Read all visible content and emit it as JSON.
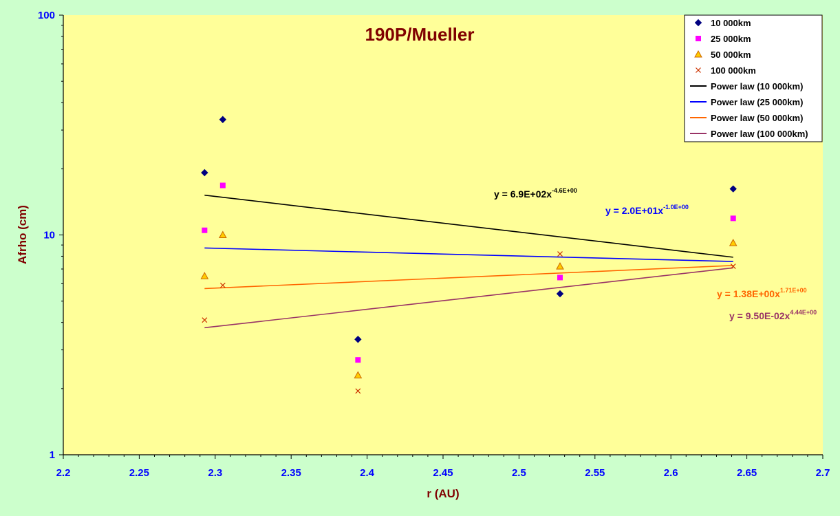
{
  "chart_data": {
    "type": "scatter",
    "title": "190P/Mueller",
    "xlabel": "r (AU)",
    "ylabel": "Afrho (cm)",
    "xlim": [
      2.2,
      2.7
    ],
    "ylim": [
      1,
      100
    ],
    "yscale": "log",
    "x_ticks": [
      "2.2",
      "2.25",
      "2.3",
      "2.35",
      "2.4",
      "2.45",
      "2.5",
      "2.55",
      "2.6",
      "2.65",
      "2.7"
    ],
    "y_ticks": [
      "1",
      "10",
      "100"
    ],
    "grid": false,
    "legend_position": "top-right",
    "series": [
      {
        "name": "10 000km",
        "marker": "diamond",
        "color": "#000080",
        "x": [
          2.293,
          2.305,
          2.394,
          2.527,
          2.641
        ],
        "y": [
          19.2,
          33.5,
          3.35,
          5.4,
          16.2
        ]
      },
      {
        "name": "25 000km",
        "marker": "square",
        "color": "#ff00ff",
        "x": [
          2.293,
          2.305,
          2.394,
          2.527,
          2.641
        ],
        "y": [
          10.5,
          16.8,
          2.7,
          6.4,
          11.9
        ]
      },
      {
        "name": "50 000km",
        "marker": "triangle",
        "color": "#ffcc00",
        "x": [
          2.293,
          2.305,
          2.394,
          2.527,
          2.641
        ],
        "y": [
          6.5,
          10.0,
          2.3,
          7.2,
          9.2
        ]
      },
      {
        "name": "100 000km",
        "marker": "x",
        "color": "#cc3300",
        "x": [
          2.293,
          2.305,
          2.394,
          2.527,
          2.641
        ],
        "y": [
          4.1,
          5.9,
          1.95,
          8.2,
          7.2
        ]
      }
    ],
    "fits": [
      {
        "name": "Power law (10 000km)",
        "color": "#000000",
        "coef": 690,
        "exp": -4.6,
        "x_range": [
          2.293,
          2.641
        ],
        "equation": "y = 6.9E+02x",
        "exponent_label": "-4.6E+00"
      },
      {
        "name": "Power law (25 000km)",
        "color": "#0000ff",
        "coef": 20,
        "exp": -1.0,
        "x_range": [
          2.293,
          2.641
        ],
        "equation": "y = 2.0E+01x",
        "exponent_label": "-1.0E+00"
      },
      {
        "name": "Power law (50 000km)",
        "color": "#ff6600",
        "coef": 1.38,
        "exp": 1.71,
        "x_range": [
          2.293,
          2.641
        ],
        "equation": "y = 1.38E+00x",
        "exponent_label": "1.71E+00"
      },
      {
        "name": "Power law (100 000km)",
        "color": "#993366",
        "coef": 0.095,
        "exp": 4.44,
        "x_range": [
          2.293,
          2.641
        ],
        "equation": "y = 9.50E-02x",
        "exponent_label": "4.44E+00"
      }
    ]
  },
  "colors": {
    "page_background": "#ccffcc",
    "plot_background": "#ffff99",
    "axis_text": "#0000ff",
    "title": "#800000"
  }
}
